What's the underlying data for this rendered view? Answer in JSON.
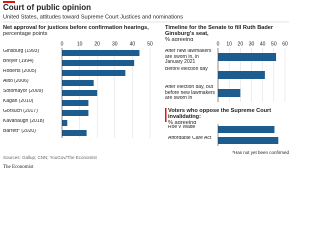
{
  "title": "Court of public opinion",
  "subtitle": "United States, attitudes toward Supreme Court Justices and nominations",
  "source": "Sources: Gallup; CNN; YouGov/The Economist",
  "footnote": "*Has not yet been confirmed",
  "brand": "The Economist",
  "chart_data": [
    {
      "type": "bar",
      "title": "Net approval for justices before confirmation hearings,",
      "subtitle": "percentage points",
      "categories": [
        "Ginsburg (1993)",
        "Breyer (1994)",
        "Roberts (2005)",
        "Alito (2006)",
        "Sotomayor (2009)",
        "Kagan (2010)",
        "Gorsuch (2017)",
        "Kavanaugh (2018)",
        "Barrett* (2020)"
      ],
      "values": [
        44,
        41,
        36,
        18,
        20,
        15,
        15,
        3,
        14
      ],
      "color": "#1d5c8f",
      "xlim": [
        0,
        50
      ],
      "xticks": [
        0,
        10,
        20,
        30,
        40,
        50
      ],
      "grid": true
    },
    {
      "type": "bar",
      "title": "Timeline for the Senate to fill Ruth Bader Ginsburg's seat,",
      "subtitle": "% agreeing",
      "categories": [
        "After new lawmakers are sworn in, in January 2021",
        "Before election day",
        "After election day, but before new lawmakers are sworn in"
      ],
      "values": [
        52,
        42,
        20
      ],
      "color": "#1d5c8f",
      "xlim": [
        0,
        60
      ],
      "xticks": [
        0,
        10,
        20,
        30,
        40,
        50,
        60
      ],
      "grid": true
    },
    {
      "type": "bar",
      "title": "Voters who oppose the Supreme Court invalidating:",
      "subtitle": "% agreeing",
      "categories": [
        "Roe v Wade",
        "Affordable Care Act"
      ],
      "values": [
        59,
        63
      ],
      "color": "#1d5c8f",
      "xlim": [
        0,
        70
      ],
      "grid": false
    }
  ]
}
